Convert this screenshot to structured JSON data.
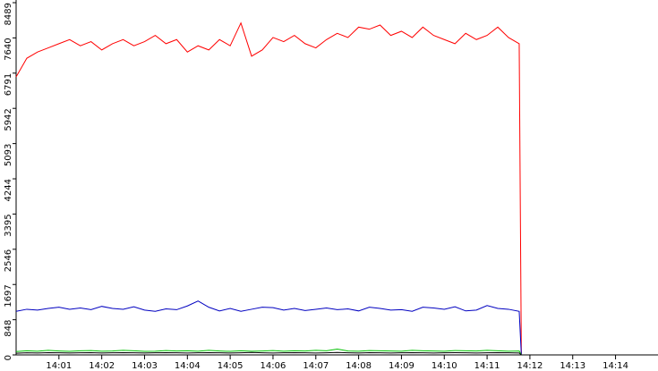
{
  "chart_data": {
    "type": "line",
    "x": [
      0,
      0.25,
      0.5,
      0.75,
      1,
      1.25,
      1.5,
      1.75,
      2,
      2.25,
      2.5,
      2.75,
      3,
      3.25,
      3.5,
      3.75,
      4,
      4.25,
      4.5,
      4.75,
      5,
      5.25,
      5.5,
      5.75,
      6,
      6.25,
      6.5,
      6.75,
      7,
      7.25,
      7.5,
      7.75,
      8,
      8.25,
      8.5,
      8.75,
      9,
      9.25,
      9.5,
      9.75,
      10,
      10.25,
      10.5,
      10.75,
      11,
      11.25,
      11.5,
      11.75,
      11.8
    ],
    "series": [
      {
        "color": "#ff0000",
        "values": [
          6700,
          7150,
          7300,
          7400,
          7500,
          7600,
          7450,
          7550,
          7350,
          7500,
          7600,
          7450,
          7550,
          7700,
          7500,
          7600,
          7300,
          7450,
          7350,
          7600,
          7450,
          8000,
          7200,
          7350,
          7650,
          7550,
          7700,
          7500,
          7400,
          7600,
          7750,
          7650,
          7900,
          7850,
          7950,
          7700,
          7800,
          7650,
          7900,
          7700,
          7600,
          7500,
          7750,
          7600,
          7700,
          7900,
          7650,
          7500,
          0
        ]
      },
      {
        "color": "#0000c0",
        "values": [
          1050,
          1100,
          1080,
          1120,
          1150,
          1100,
          1130,
          1090,
          1170,
          1120,
          1100,
          1160,
          1080,
          1050,
          1110,
          1090,
          1180,
          1300,
          1150,
          1060,
          1120,
          1050,
          1100,
          1150,
          1140,
          1080,
          1120,
          1070,
          1100,
          1130,
          1090,
          1110,
          1060,
          1150,
          1120,
          1080,
          1090,
          1050,
          1150,
          1130,
          1100,
          1160,
          1060,
          1080,
          1190,
          1120,
          1100,
          1050,
          0
        ]
      },
      {
        "color": "#00c000",
        "values": [
          80,
          100,
          90,
          110,
          95,
          85,
          100,
          105,
          90,
          95,
          110,
          100,
          85,
          90,
          105,
          95,
          100,
          90,
          110,
          95,
          85,
          100,
          90,
          95,
          105,
          90,
          100,
          95,
          110,
          100,
          140,
          95,
          90,
          105,
          100,
          95,
          90,
          110,
          100,
          95,
          90,
          105,
          100,
          95,
          110,
          100,
          90,
          95,
          0
        ]
      },
      {
        "color": "#000000",
        "values": [
          40,
          50,
          45,
          55,
          50,
          45,
          50,
          55,
          45,
          50,
          55,
          50,
          45,
          50,
          55,
          50,
          45,
          50,
          55,
          50,
          45,
          50,
          60,
          50,
          45,
          50,
          55,
          50,
          45,
          50,
          60,
          50,
          45,
          55,
          50,
          45,
          50,
          55,
          50,
          45,
          50,
          55,
          50,
          45,
          50,
          55,
          50,
          45,
          0
        ]
      }
    ],
    "xlim": [
      0,
      14.95
    ],
    "xticks": [
      {
        "value": 1,
        "label": "14:01"
      },
      {
        "value": 2,
        "label": "14:02"
      },
      {
        "value": 3,
        "label": "14:03"
      },
      {
        "value": 4,
        "label": "14:04"
      },
      {
        "value": 5,
        "label": "14:05"
      },
      {
        "value": 6,
        "label": "14:06"
      },
      {
        "value": 7,
        "label": "14:07"
      },
      {
        "value": 8,
        "label": "14:08"
      },
      {
        "value": 9,
        "label": "14:09"
      },
      {
        "value": 10,
        "label": "14:10"
      },
      {
        "value": 11,
        "label": "14:11"
      },
      {
        "value": 12,
        "label": "14:12"
      },
      {
        "value": 13,
        "label": "14:13"
      },
      {
        "value": 14,
        "label": "14:14"
      }
    ],
    "ylim": [
      0,
      8489
    ],
    "yticks": [
      0,
      848,
      1697,
      2546,
      3395,
      4244,
      5093,
      5942,
      6791,
      7640,
      8489
    ]
  }
}
